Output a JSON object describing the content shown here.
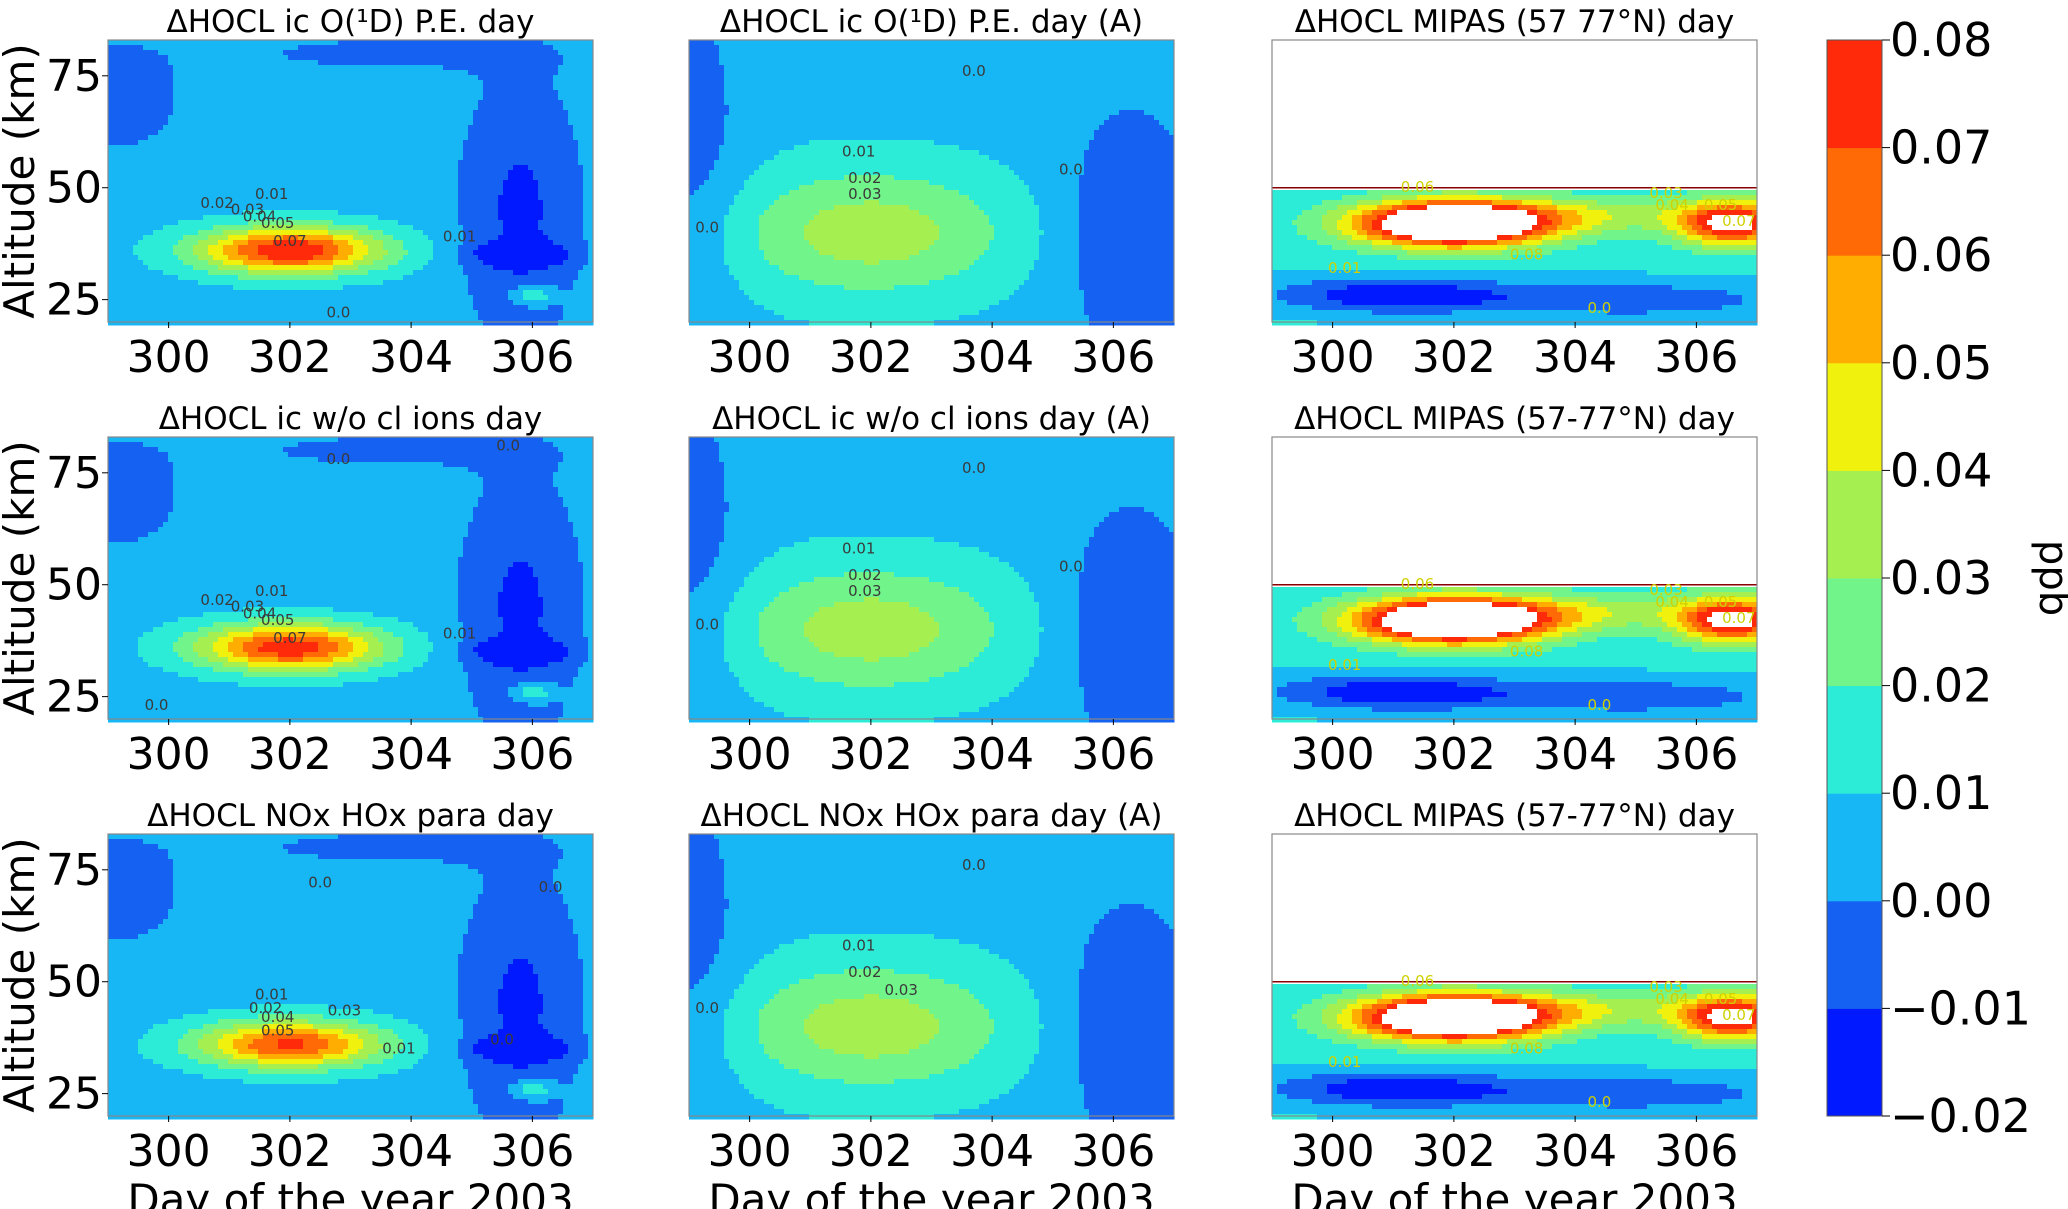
{
  "figure": {
    "colorbar": {
      "label": "ppb",
      "levels": [
        -0.02,
        -0.01,
        0.0,
        0.01,
        0.02,
        0.03,
        0.04,
        0.05,
        0.06,
        0.07,
        0.08
      ],
      "tick_labels": [
        "0.08",
        "0.07",
        "0.06",
        "0.05",
        "0.04",
        "0.03",
        "0.02",
        "0.01",
        "0.00",
        "−0.01",
        "−0.02"
      ],
      "colors": [
        "#0019ff",
        "#1561f2",
        "#17b7f6",
        "#2cecd8",
        "#71f48a",
        "#a5f050",
        "#f0f20e",
        "#ffad00",
        "#ff6a07",
        "#ff2a0a"
      ]
    },
    "shared_x_label": "Day of the year 2003",
    "shared_y_label": "Altitude (km)",
    "mipas_mask_color": "#ffffff"
  },
  "chart_data": [
    {
      "type": "heatmap",
      "title": "ΔHOCL ic O(¹D) P.E. day",
      "xlabel": "",
      "ylabel": "Altitude (km)",
      "xticks": [
        "300",
        "302",
        "304",
        "306"
      ],
      "yticks": [
        "25",
        "50",
        "75"
      ],
      "xlim": [
        299,
        307
      ],
      "ylim": [
        20,
        83
      ],
      "contour_labels": [
        "0.01",
        "0.02",
        "0.03",
        "0.04",
        "0.05",
        "0.07",
        "0.01",
        "0.0"
      ]
    },
    {
      "type": "heatmap",
      "title": "ΔHOCL ic O(¹D) P.E. day (A)",
      "xlabel": "",
      "ylabel": "",
      "xticks": [
        "300",
        "302",
        "304",
        "306"
      ],
      "yticks": [],
      "xlim": [
        299,
        307
      ],
      "ylim": [
        20,
        83
      ],
      "contour_labels": [
        "0.01",
        "0.02",
        "0.03",
        "0.0",
        "0.0",
        "0.0"
      ]
    },
    {
      "type": "heatmap",
      "title": "ΔHOCL MIPAS (57 77°N) day",
      "xlabel": "",
      "ylabel": "",
      "xticks": [
        "300",
        "302",
        "304",
        "306"
      ],
      "yticks": [],
      "xlim": [
        299,
        307
      ],
      "ylim": [
        20,
        83
      ],
      "contour_labels": [
        "0.06",
        "0.03",
        "0.04",
        "0.05",
        "0.07",
        "0.01",
        "0.08",
        "0.0"
      ]
    },
    {
      "type": "heatmap",
      "title": "ΔHOCL ic w/o cl ions day",
      "xlabel": "",
      "ylabel": "Altitude (km)",
      "xticks": [
        "300",
        "302",
        "304",
        "306"
      ],
      "yticks": [
        "25",
        "50",
        "75"
      ],
      "xlim": [
        299,
        307
      ],
      "ylim": [
        20,
        83
      ],
      "contour_labels": [
        "0.01",
        "0.02",
        "0.03",
        "0.04",
        "0.05",
        "0.07",
        "0.0",
        "0.0",
        "0.01",
        "0.0"
      ]
    },
    {
      "type": "heatmap",
      "title": "ΔHOCL ic w/o cl ions day (A)",
      "xlabel": "",
      "ylabel": "",
      "xticks": [
        "300",
        "302",
        "304",
        "306"
      ],
      "yticks": [],
      "xlim": [
        299,
        307
      ],
      "ylim": [
        20,
        83
      ],
      "contour_labels": [
        "0.01",
        "0.02",
        "0.03",
        "0.0",
        "0.0",
        "0.0"
      ]
    },
    {
      "type": "heatmap",
      "title": "ΔHOCL MIPAS (57-77°N) day",
      "xlabel": "",
      "ylabel": "",
      "xticks": [
        "300",
        "302",
        "304",
        "306"
      ],
      "yticks": [],
      "xlim": [
        299,
        307
      ],
      "ylim": [
        20,
        83
      ],
      "contour_labels": [
        "0.06",
        "0.03",
        "0.04",
        "0.05",
        "0.07",
        "0.01",
        "0.08",
        "0.0"
      ]
    },
    {
      "type": "heatmap",
      "title": "ΔHOCL NOx HOx para day",
      "xlabel": "Day of the year 2003",
      "ylabel": "Altitude (km)",
      "xticks": [
        "300",
        "302",
        "304",
        "306"
      ],
      "yticks": [
        "25",
        "50",
        "75"
      ],
      "xlim": [
        299,
        307
      ],
      "ylim": [
        20,
        83
      ],
      "contour_labels": [
        "0.01",
        "0.02",
        "0.03",
        "0.04",
        "0.05",
        "0.0",
        "0.0",
        "0.01",
        "0.0"
      ]
    },
    {
      "type": "heatmap",
      "title": "ΔHOCL NOx HOx para day (A)",
      "xlabel": "Day of the year 2003",
      "ylabel": "",
      "xticks": [
        "300",
        "302",
        "304",
        "306"
      ],
      "yticks": [],
      "xlim": [
        299,
        307
      ],
      "ylim": [
        20,
        83
      ],
      "contour_labels": [
        "0.01",
        "0.02",
        "0.03",
        "0.0",
        "0.0"
      ]
    },
    {
      "type": "heatmap",
      "title": "ΔHOCL MIPAS (57-77°N) day",
      "xlabel": "Day of the year 2003",
      "ylabel": "",
      "xticks": [
        "300",
        "302",
        "304",
        "306"
      ],
      "yticks": [],
      "xlim": [
        299,
        307
      ],
      "ylim": [
        20,
        83
      ],
      "contour_labels": [
        "0.06",
        "0.03",
        "0.04",
        "0.05",
        "0.07",
        "0.01",
        "0.08",
        "0.0"
      ]
    }
  ]
}
